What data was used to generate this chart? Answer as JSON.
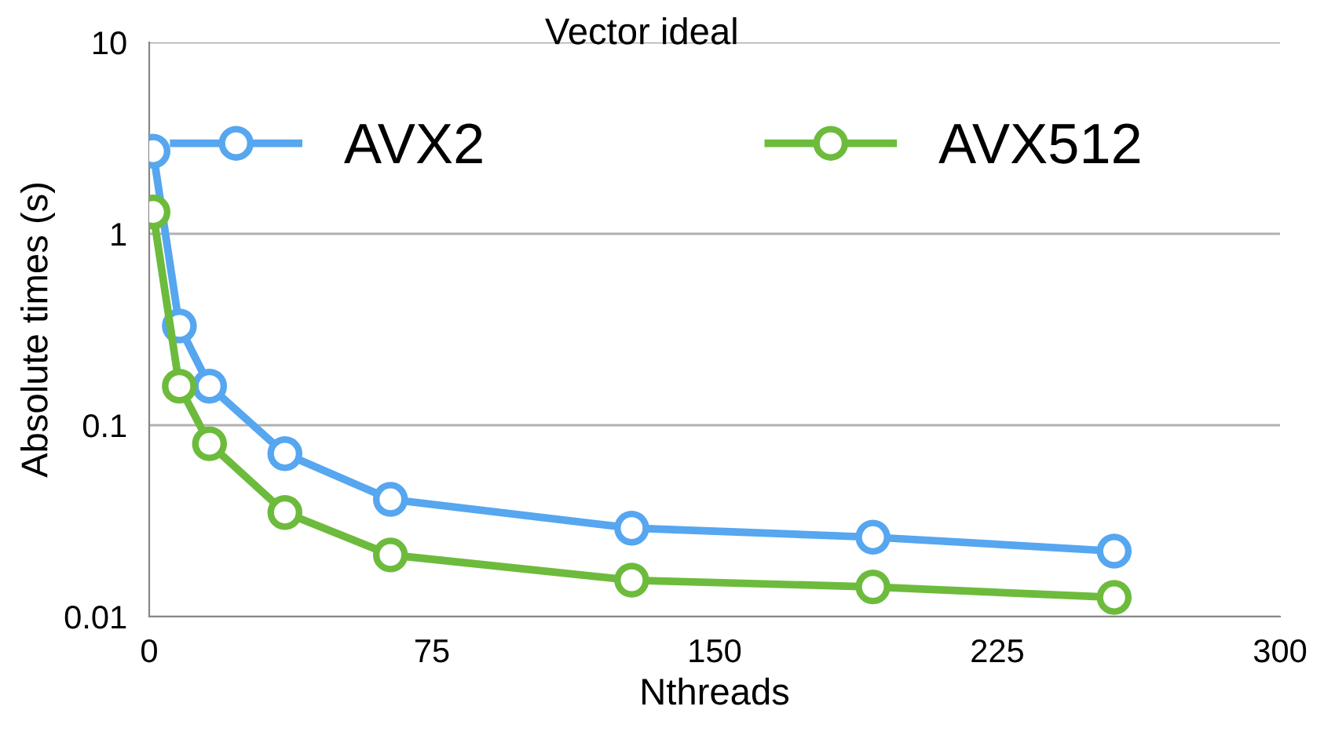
{
  "chart_data": {
    "type": "line",
    "title": "Vector ideal",
    "xlabel": "Nthreads",
    "ylabel": "Absolute times (s)",
    "x": [
      1,
      8,
      16,
      36,
      64,
      128,
      192,
      256
    ],
    "series": [
      {
        "name": "AVX2",
        "color": "#56a6f0",
        "values": [
          2.7,
          0.33,
          0.16,
          0.071,
          0.041,
          0.029,
          0.026,
          0.022
        ]
      },
      {
        "name": "AVX512",
        "color": "#6dbb3c",
        "values": [
          1.3,
          0.16,
          0.08,
          0.035,
          0.021,
          0.0155,
          0.0143,
          0.0126
        ]
      }
    ],
    "xlim": [
      0,
      300
    ],
    "xticks": [
      0,
      75,
      150,
      225,
      300
    ],
    "ylim": [
      0.01,
      10
    ],
    "yticks": [
      0.01,
      0.1,
      1,
      10
    ],
    "log": "y",
    "grid": "y",
    "legend": "top",
    "marker": "circle",
    "line_style": "solid"
  }
}
